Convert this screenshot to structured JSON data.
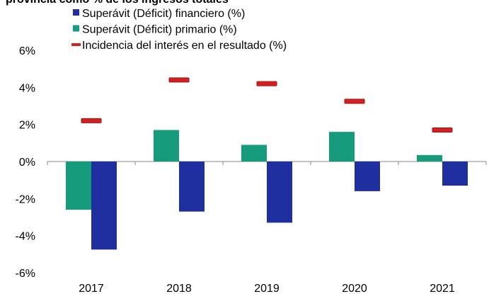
{
  "chart_data": {
    "type": "bar",
    "title": "provincia como % de los ingresos totales",
    "categories": [
      "2017",
      "2018",
      "2019",
      "2020",
      "2021"
    ],
    "series": [
      {
        "name": "Superávit (Déficit) financiero (%)",
        "color": "#1f2f9f",
        "type": "bar",
        "values": [
          -4.75,
          -2.7,
          -3.3,
          -1.6,
          -1.3
        ]
      },
      {
        "name": "Superávit (Déficit) primario (%)",
        "color": "#169b7c",
        "type": "bar",
        "values": [
          -2.6,
          1.7,
          0.9,
          1.6,
          0.35
        ]
      },
      {
        "name": "Incidencia del interés en el resultado (%)",
        "color": "#d42020",
        "type": "marker",
        "values": [
          2.2,
          4.4,
          4.2,
          3.25,
          1.7
        ]
      }
    ],
    "ylim": [
      -6,
      6
    ],
    "yticks": [
      {
        "value": -6,
        "label": "-6%"
      },
      {
        "value": -4,
        "label": "-4%"
      },
      {
        "value": -2,
        "label": "-2%"
      },
      {
        "value": 0,
        "label": "0%"
      },
      {
        "value": 2,
        "label": "2%"
      },
      {
        "value": 4,
        "label": "4%"
      },
      {
        "value": 6,
        "label": "6%"
      }
    ]
  }
}
